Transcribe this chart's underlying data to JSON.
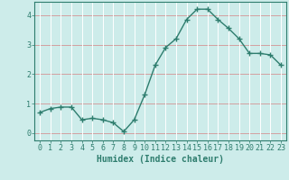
{
  "x": [
    0,
    1,
    2,
    3,
    4,
    5,
    6,
    7,
    8,
    9,
    10,
    11,
    12,
    13,
    14,
    15,
    16,
    17,
    18,
    19,
    20,
    21,
    22,
    23
  ],
  "y": [
    0.7,
    0.83,
    0.88,
    0.88,
    0.45,
    0.5,
    0.45,
    0.35,
    0.05,
    0.45,
    1.3,
    2.3,
    2.9,
    3.2,
    3.85,
    4.2,
    4.2,
    3.85,
    3.55,
    3.2,
    2.7,
    2.7,
    2.65,
    2.3
  ],
  "line_color": "#2e7d6e",
  "marker": "+",
  "marker_size": 4,
  "linewidth": 1.0,
  "bg_color": "#cdecea",
  "plot_bg_color": "#cdecea",
  "grid_color_vertical": "#ffffff",
  "grid_color_horizontal": "#d4a0a0",
  "xlabel": "Humidex (Indice chaleur)",
  "xlabel_fontsize": 7,
  "xlabel_color": "#2e7d6e",
  "yticks": [
    0,
    1,
    2,
    3,
    4
  ],
  "xtick_labels": [
    "0",
    "1",
    "2",
    "3",
    "4",
    "5",
    "6",
    "7",
    "8",
    "9",
    "10",
    "11",
    "12",
    "13",
    "14",
    "15",
    "16",
    "17",
    "18",
    "19",
    "20",
    "21",
    "22",
    "23"
  ],
  "ylim": [
    -0.25,
    4.45
  ],
  "xlim": [
    -0.5,
    23.5
  ],
  "tick_fontsize": 6,
  "tick_color": "#2e7d6e",
  "spine_color": "#2e7d6e"
}
